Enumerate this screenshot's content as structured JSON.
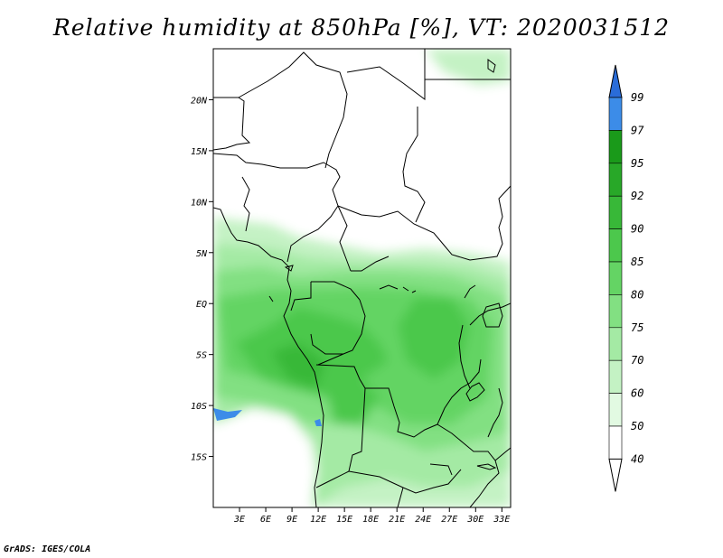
{
  "title": "Relative humidity at 850hPa [%], VT: 2020031512",
  "credit": "GrADS: IGES/COLA",
  "map": {
    "lon_range": [
      0,
      34
    ],
    "lat_range": [
      -20,
      25
    ],
    "lon_ticks": [
      {
        "value": 3,
        "label": "3E"
      },
      {
        "value": 6,
        "label": "6E"
      },
      {
        "value": 9,
        "label": "9E"
      },
      {
        "value": 12,
        "label": "12E"
      },
      {
        "value": 15,
        "label": "15E"
      },
      {
        "value": 18,
        "label": "18E"
      },
      {
        "value": 21,
        "label": "21E"
      },
      {
        "value": 24,
        "label": "24E"
      },
      {
        "value": 27,
        "label": "27E"
      },
      {
        "value": 30,
        "label": "30E"
      },
      {
        "value": 33,
        "label": "33E"
      }
    ],
    "lat_ticks": [
      {
        "value": 20,
        "label": "20N"
      },
      {
        "value": 15,
        "label": "15N"
      },
      {
        "value": 10,
        "label": "10N"
      },
      {
        "value": 5,
        "label": "5N"
      },
      {
        "value": 0,
        "label": "EQ"
      },
      {
        "value": -5,
        "label": "5S"
      },
      {
        "value": -10,
        "label": "10S"
      },
      {
        "value": -15,
        "label": "15S"
      }
    ]
  },
  "colorbar": {
    "levels": [
      {
        "label": "99",
        "color": "#1e6edc"
      },
      {
        "label": "97",
        "color": "#3c8ce8"
      },
      {
        "label": "95",
        "color": "#1a9a1a"
      },
      {
        "label": "92",
        "color": "#28a828"
      },
      {
        "label": "90",
        "color": "#38b838"
      },
      {
        "label": "85",
        "color": "#4cc84c"
      },
      {
        "label": "80",
        "color": "#64d464"
      },
      {
        "label": "75",
        "color": "#82e082"
      },
      {
        "label": "70",
        "color": "#a4eaa4"
      },
      {
        "label": "60",
        "color": "#c4f2c4"
      },
      {
        "label": "50",
        "color": "#e2fae2"
      },
      {
        "label": "40",
        "color": "#ffffff"
      }
    ],
    "top_color": "#2a6cd8",
    "bottom_color": "#ffffff"
  }
}
